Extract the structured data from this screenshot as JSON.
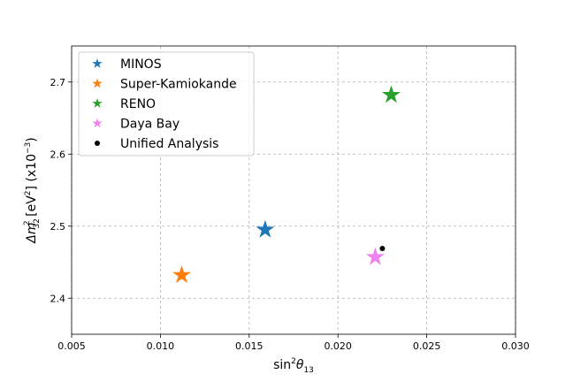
{
  "chart_data": {
    "type": "scatter",
    "xlabel_base": "sin",
    "xlabel_sup": "2",
    "xlabel_theta": "θ",
    "xlabel_sub": "13",
    "ylabel_delta": "Δm",
    "ylabel_sub": "32",
    "ylabel_sup": "2",
    "ylabel_unit_open": " [eV",
    "ylabel_unit_sup": "2",
    "ylabel_unit_close": "] (x10",
    "ylabel_exp": "−3",
    "ylabel_end": ")",
    "xlim": [
      0.005,
      0.03
    ],
    "ylim": [
      2.35,
      2.75
    ],
    "xticks": [
      {
        "value": 0.005,
        "label": "0.005"
      },
      {
        "value": 0.01,
        "label": "0.010"
      },
      {
        "value": 0.015,
        "label": "0.015"
      },
      {
        "value": 0.02,
        "label": "0.020"
      },
      {
        "value": 0.025,
        "label": "0.025"
      },
      {
        "value": 0.03,
        "label": "0.030"
      }
    ],
    "yticks": [
      {
        "value": 2.4,
        "label": "2.4"
      },
      {
        "value": 2.5,
        "label": "2.5"
      },
      {
        "value": 2.6,
        "label": "2.6"
      },
      {
        "value": 2.7,
        "label": "2.7"
      }
    ],
    "grid": true,
    "legend_position": "top-left",
    "series": [
      {
        "name": "MINOS",
        "marker": "star",
        "color": "#1f77b4",
        "x": 0.0159,
        "y": 2.495
      },
      {
        "name": "Super-Kamiokande",
        "marker": "star",
        "color": "#ff7f0e",
        "x": 0.0112,
        "y": 2.432
      },
      {
        "name": "RENO",
        "marker": "star",
        "color": "#2ca02c",
        "x": 0.023,
        "y": 2.682
      },
      {
        "name": "Daya Bay",
        "marker": "star",
        "color": "#ee82ee",
        "x": 0.0221,
        "y": 2.457
      },
      {
        "name": "Unified Analysis",
        "marker": "dot",
        "color": "#000000",
        "x": 0.0225,
        "y": 2.469
      }
    ]
  }
}
